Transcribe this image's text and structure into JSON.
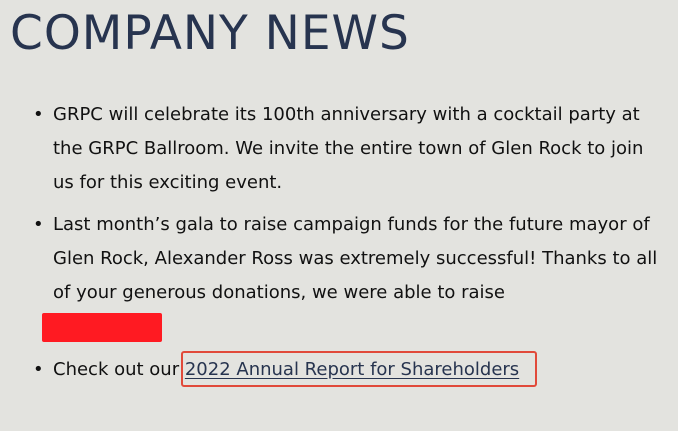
{
  "page": {
    "heading": "COMPANY NEWS"
  },
  "news": {
    "items": [
      {
        "bullet": "•",
        "text": "GRPC will celebrate its 100th anniversary with a cocktail party at the GRPC Ballroom. We invite the entire town of Glen Rock to join us for this exciting event."
      },
      {
        "bullet": "•",
        "text": "Last month’s gala to raise campaign funds for the future mayor of Glen Rock, Alexander Ross was extremely successful! Thanks to all of your generous donations, we were able to raise"
      },
      {
        "bullet": "•",
        "text": "Check out our",
        "link_text": "2022 Annual Report for Shareholders"
      }
    ]
  },
  "colors": {
    "heading": "#27344f",
    "link": "#27344f",
    "redaction": "#ff1a22",
    "highlight_border": "#e14a3a",
    "background": "#e3e3df"
  }
}
